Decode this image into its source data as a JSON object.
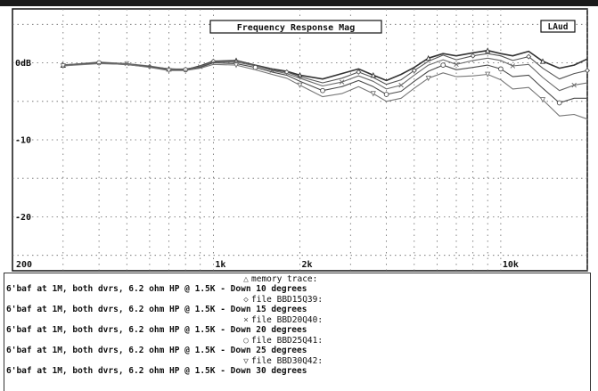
{
  "colors": {
    "background": "#ffffff",
    "frame": "#111111",
    "grid": "#666666",
    "traces": [
      "#333333",
      "#555555",
      "#6a6a6a",
      "#4a4a4a",
      "#777777"
    ]
  },
  "legend": {
    "entries": [
      {
        "marker": "triangle-up",
        "glyph": "△",
        "name": "memory trace:",
        "desc": "6'baf at 1M, both dvrs, 6.2 ohm HP @ 1.5K - Down 10 degrees"
      },
      {
        "marker": "diamond",
        "glyph": "◇",
        "name": "file BBD15Q39:",
        "desc": "6'baf at 1M, both dvrs, 6.2 ohm HP @ 1.5K - Down 15 degrees"
      },
      {
        "marker": "cross",
        "glyph": "×",
        "name": "file BBD20Q40:",
        "desc": "6'baf at 1M, both dvrs, 6.2 ohm HP @ 1.5K - Down 20 degrees"
      },
      {
        "marker": "circle",
        "glyph": "○",
        "name": "file BBD25Q41:",
        "desc": "6'baf at 1M, both dvrs, 6.2 ohm HP @ 1.5K - Down 25 degrees"
      },
      {
        "marker": "triangle-down",
        "glyph": "▽",
        "name": "file BBD30Q42:",
        "desc": "6'baf at 1M, both dvrs, 6.2 ohm HP @ 1.5K - Down 30 degrees"
      }
    ]
  },
  "chart_data": {
    "type": "line",
    "title": "Frequency Response Mag",
    "badge": "LAud",
    "xscale": "log",
    "xlim": [
      200,
      20000
    ],
    "ylim": [
      -27,
      7
    ],
    "grid": true,
    "x_tick_labels": [
      {
        "value": 200,
        "label": "200"
      },
      {
        "value": 1000,
        "label": "1k"
      },
      {
        "value": 2000,
        "label": "2k"
      },
      {
        "value": 10000,
        "label": "10k"
      }
    ],
    "y_tick_labels": [
      {
        "value": 0,
        "label": "0dB"
      },
      {
        "value": -10,
        "label": "-10"
      },
      {
        "value": -20,
        "label": "-20"
      }
    ],
    "x": [
      300,
      400,
      500,
      600,
      700,
      800,
      900,
      1000,
      1200,
      1400,
      1600,
      1800,
      2000,
      2400,
      2800,
      3200,
      3600,
      4000,
      4500,
      5000,
      5600,
      6300,
      7000,
      8000,
      9000,
      10000,
      11000,
      12500,
      14000,
      16000,
      18000,
      20000
    ],
    "series": [
      {
        "name": "memory trace:",
        "values": [
          -0.3,
          0.0,
          -0.2,
          -0.5,
          -0.8,
          -0.9,
          -0.4,
          0.2,
          0.3,
          -0.3,
          -0.8,
          -1.1,
          -1.6,
          -2.1,
          -1.4,
          -0.8,
          -1.6,
          -2.3,
          -1.5,
          -0.6,
          0.6,
          1.2,
          0.9,
          1.3,
          1.6,
          1.2,
          0.9,
          1.5,
          0.2,
          -0.7,
          -0.3,
          0.5
        ]
      },
      {
        "name": "file BBD15Q39:",
        "values": [
          -0.3,
          0.0,
          -0.1,
          -0.5,
          -0.9,
          -0.8,
          -0.5,
          0.2,
          0.3,
          -0.3,
          -0.9,
          -1.2,
          -1.8,
          -2.6,
          -2.0,
          -1.2,
          -1.9,
          -2.8,
          -2.2,
          -1.0,
          0.2,
          1.0,
          0.4,
          0.9,
          1.2,
          0.9,
          0.3,
          0.8,
          -0.7,
          -2.1,
          -1.4,
          -1.0
        ]
      },
      {
        "name": "file BBD20Q40:",
        "values": [
          -0.3,
          0.1,
          -0.1,
          -0.4,
          -0.8,
          -0.8,
          -0.5,
          0.1,
          0.1,
          -0.4,
          -1.0,
          -1.4,
          -2.0,
          -3.0,
          -2.5,
          -1.7,
          -2.4,
          -3.4,
          -2.9,
          -1.6,
          -0.3,
          0.4,
          -0.2,
          0.3,
          0.6,
          0.3,
          -0.4,
          -0.2,
          -1.9,
          -3.6,
          -2.9,
          -2.6
        ]
      },
      {
        "name": "file BBD25Q41:",
        "values": [
          -0.4,
          0.0,
          -0.2,
          -0.5,
          -0.9,
          -0.9,
          -0.6,
          0.0,
          -0.1,
          -0.6,
          -1.2,
          -1.6,
          -2.4,
          -3.6,
          -3.1,
          -2.3,
          -3.1,
          -4.1,
          -3.7,
          -2.4,
          -1.1,
          -0.3,
          -0.9,
          -0.6,
          -0.3,
          -0.8,
          -1.8,
          -1.6,
          -3.3,
          -5.2,
          -4.6,
          -4.6
        ]
      },
      {
        "name": "file BBD30Q42:",
        "values": [
          -0.4,
          -0.1,
          -0.2,
          -0.6,
          -1.0,
          -1.0,
          -0.7,
          -0.2,
          -0.3,
          -0.9,
          -1.5,
          -2.0,
          -2.9,
          -4.4,
          -4.0,
          -3.1,
          -4.0,
          -5.0,
          -4.6,
          -3.3,
          -2.0,
          -1.3,
          -1.8,
          -1.7,
          -1.5,
          -2.2,
          -3.4,
          -3.2,
          -4.8,
          -6.9,
          -6.7,
          -7.3
        ]
      }
    ]
  }
}
